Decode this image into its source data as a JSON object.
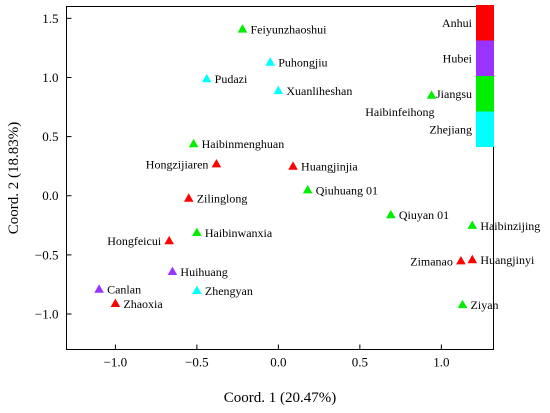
{
  "chart_data": {
    "type": "scatter",
    "xlabel": "Coord. 1 (20.47%)",
    "ylabel": "Coord. 2 (18.83%)",
    "xlim": [
      -1.3,
      1.32
    ],
    "ylim": [
      -1.3,
      1.6
    ],
    "xticks": [
      -1.0,
      -0.5,
      0.0,
      0.5,
      1.0
    ],
    "xtick_labels": [
      "−1.0",
      "−0.5",
      "0.0",
      "0.5",
      "1.0"
    ],
    "yticks": [
      1.5,
      1.0,
      0.5,
      0.0,
      -0.5,
      -1.0
    ],
    "ytick_labels": [
      "1.5",
      "1.0",
      "0.5",
      "0.0",
      "−0.5",
      "−1.0"
    ],
    "grid": false,
    "legend": {
      "placement": "top-right",
      "entries": [
        {
          "name": "Anhui",
          "color": "#ff0000"
        },
        {
          "name": "Hubei",
          "color": "#9933ff"
        },
        {
          "name": "Jiangsu",
          "color": "#00ee00"
        },
        {
          "name": "Zhejiang",
          "color": "#00ffff"
        }
      ]
    },
    "series": [
      {
        "name": "Anhui",
        "color": "#ff0000",
        "points": [
          {
            "label": "Hongzijiaren",
            "x": -0.38,
            "y": 0.27,
            "anchor": "left"
          },
          {
            "label": "Huangjinjia",
            "x": 0.09,
            "y": 0.25,
            "anchor": "right"
          },
          {
            "label": "Zilinglong",
            "x": -0.55,
            "y": -0.02,
            "anchor": "right"
          },
          {
            "label": "Hongfeicui",
            "x": -0.67,
            "y": -0.38,
            "anchor": "left"
          },
          {
            "label": "Zhaoxia",
            "x": -1.0,
            "y": -0.91,
            "anchor": "right"
          },
          {
            "label": "Zimanao",
            "x": 1.12,
            "y": -0.55,
            "anchor": "left"
          },
          {
            "label": "Huangjinyi",
            "x": 1.19,
            "y": -0.54,
            "anchor": "right"
          }
        ]
      },
      {
        "name": "Hubei",
        "color": "#9933ff",
        "points": [
          {
            "label": "Huihuang",
            "x": -0.65,
            "y": -0.64,
            "anchor": "right"
          },
          {
            "label": "Canlan",
            "x": -1.1,
            "y": -0.79,
            "anchor": "right"
          }
        ]
      },
      {
        "name": "Jiangsu",
        "color": "#00ee00",
        "points": [
          {
            "label": "Feiyunzhaoshui",
            "x": -0.22,
            "y": 1.41,
            "anchor": "right"
          },
          {
            "label": "Haibinfeihong",
            "x": 0.94,
            "y": 0.85,
            "anchor": "below-left"
          },
          {
            "label": "Haibinmenghuan",
            "x": -0.52,
            "y": 0.44,
            "anchor": "right"
          },
          {
            "label": "Qiuhuang 01",
            "x": 0.18,
            "y": 0.05,
            "anchor": "right"
          },
          {
            "label": "Haibinwanxia",
            "x": -0.5,
            "y": -0.31,
            "anchor": "right"
          },
          {
            "label": "Qiuyan 01",
            "x": 0.69,
            "y": -0.16,
            "anchor": "right"
          },
          {
            "label": "Haibinzijing",
            "x": 1.19,
            "y": -0.25,
            "anchor": "right"
          },
          {
            "label": "Ziyan",
            "x": 1.13,
            "y": -0.92,
            "anchor": "right"
          }
        ]
      },
      {
        "name": "Zhejiang",
        "color": "#00ffff",
        "points": [
          {
            "label": "Puhongjiu",
            "x": -0.05,
            "y": 1.13,
            "anchor": "right"
          },
          {
            "label": "Pudazi",
            "x": -0.44,
            "y": 0.99,
            "anchor": "right"
          },
          {
            "label": "Xuanliheshan",
            "x": 0.0,
            "y": 0.89,
            "anchor": "right"
          },
          {
            "label": "Zhengyan",
            "x": -0.5,
            "y": -0.8,
            "anchor": "right"
          }
        ]
      }
    ]
  }
}
